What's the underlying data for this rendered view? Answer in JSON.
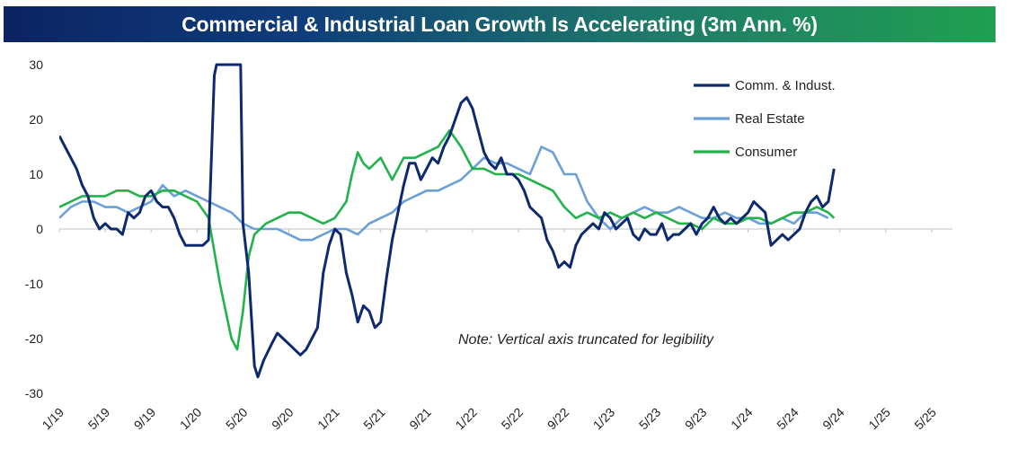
{
  "chart_data": {
    "type": "line",
    "title": "Commercial & Industrial Loan Growth Is Accelerating (3m Ann. %)",
    "note": "Note: Vertical axis truncated for legibility",
    "ylim": [
      -30,
      30
    ],
    "y_ticks": [
      "30",
      "20",
      "10",
      "0",
      "-10",
      "-20",
      "-30"
    ],
    "y_tick_values": [
      30,
      20,
      10,
      0,
      -10,
      -20,
      -30
    ],
    "x_tick_labels": [
      "1/19",
      "5/19",
      "9/19",
      "1/20",
      "5/20",
      "9/20",
      "1/21",
      "5/21",
      "9/21",
      "1/22",
      "5/22",
      "9/22",
      "1/23",
      "5/23",
      "9/23",
      "1/24",
      "5/24",
      "9/24",
      "1/25",
      "5/25"
    ],
    "x_tick_values": [
      0,
      4,
      8,
      12,
      16,
      20,
      24,
      28,
      32,
      36,
      40,
      44,
      48,
      52,
      56,
      60,
      64,
      68,
      72,
      76
    ],
    "xlim": [
      0,
      80
    ],
    "legend_position": "top-right",
    "series": [
      {
        "name": "Comm. & Indust.",
        "color": "#0e2a6e",
        "points": [
          [
            0,
            17
          ],
          [
            0.5,
            15
          ],
          [
            1,
            13
          ],
          [
            1.5,
            11
          ],
          [
            2,
            8
          ],
          [
            2.5,
            6
          ],
          [
            3,
            2
          ],
          [
            3.5,
            0
          ],
          [
            4,
            1
          ],
          [
            4.5,
            0
          ],
          [
            5,
            0
          ],
          [
            5.5,
            -1
          ],
          [
            6,
            3
          ],
          [
            6.5,
            2
          ],
          [
            7,
            3
          ],
          [
            7.5,
            6
          ],
          [
            8,
            7
          ],
          [
            8.5,
            5
          ],
          [
            9,
            4
          ],
          [
            9.5,
            4
          ],
          [
            10,
            2
          ],
          [
            10.5,
            -1
          ],
          [
            11,
            -3
          ],
          [
            11.5,
            -3
          ],
          [
            12,
            -3
          ],
          [
            12.5,
            -3
          ],
          [
            13,
            -2
          ],
          [
            13.5,
            28
          ],
          [
            13.7,
            30
          ],
          [
            14.5,
            30
          ],
          [
            15.8,
            30
          ],
          [
            16,
            1
          ],
          [
            16.5,
            -8
          ],
          [
            17,
            -25
          ],
          [
            17.3,
            -27
          ],
          [
            17.8,
            -24
          ],
          [
            18.5,
            -21
          ],
          [
            19,
            -19
          ],
          [
            19.5,
            -20
          ],
          [
            20,
            -21
          ],
          [
            20.5,
            -22
          ],
          [
            21,
            -23
          ],
          [
            21.5,
            -22
          ],
          [
            22,
            -20
          ],
          [
            22.5,
            -18
          ],
          [
            23,
            -8
          ],
          [
            23.5,
            -3
          ],
          [
            24,
            0
          ],
          [
            24.5,
            -1
          ],
          [
            25,
            -8
          ],
          [
            25.5,
            -12
          ],
          [
            26,
            -17
          ],
          [
            26.5,
            -14
          ],
          [
            27,
            -15
          ],
          [
            27.5,
            -18
          ],
          [
            28,
            -17
          ],
          [
            28.5,
            -9
          ],
          [
            29,
            -2
          ],
          [
            29.5,
            3
          ],
          [
            30,
            8
          ],
          [
            30.5,
            12
          ],
          [
            31,
            12
          ],
          [
            31.5,
            9
          ],
          [
            32,
            11
          ],
          [
            32.5,
            13
          ],
          [
            33,
            12
          ],
          [
            33.5,
            15
          ],
          [
            34,
            17
          ],
          [
            34.5,
            20
          ],
          [
            35,
            23
          ],
          [
            35.5,
            24
          ],
          [
            36,
            22
          ],
          [
            36.5,
            18
          ],
          [
            37,
            14
          ],
          [
            37.5,
            12
          ],
          [
            38,
            11
          ],
          [
            38.5,
            13
          ],
          [
            39,
            10
          ],
          [
            39.5,
            10
          ],
          [
            40,
            9
          ],
          [
            40.5,
            7
          ],
          [
            41,
            4
          ],
          [
            41.5,
            3
          ],
          [
            42,
            2
          ],
          [
            42.5,
            -2
          ],
          [
            43,
            -4
          ],
          [
            43.5,
            -7
          ],
          [
            44,
            -6
          ],
          [
            44.5,
            -7
          ],
          [
            45,
            -3
          ],
          [
            45.5,
            -1
          ],
          [
            46,
            0
          ],
          [
            46.5,
            1
          ],
          [
            47,
            0
          ],
          [
            47.5,
            3
          ],
          [
            48,
            2
          ],
          [
            48.5,
            0
          ],
          [
            49,
            1
          ],
          [
            49.5,
            2
          ],
          [
            50,
            -1
          ],
          [
            50.5,
            -2
          ],
          [
            51,
            0
          ],
          [
            51.5,
            -1
          ],
          [
            52,
            -1
          ],
          [
            52.5,
            1
          ],
          [
            53,
            -2
          ],
          [
            53.5,
            -1
          ],
          [
            54,
            -1
          ],
          [
            54.5,
            0
          ],
          [
            55,
            1
          ],
          [
            55.5,
            -1
          ],
          [
            56,
            1
          ],
          [
            56.5,
            2
          ],
          [
            57,
            4
          ],
          [
            57.5,
            2
          ],
          [
            58,
            1
          ],
          [
            58.5,
            2
          ],
          [
            59,
            1
          ],
          [
            59.5,
            2
          ],
          [
            60,
            3
          ],
          [
            60.5,
            5
          ],
          [
            61,
            4
          ],
          [
            61.5,
            3
          ],
          [
            62,
            -3
          ],
          [
            62.5,
            -2
          ],
          [
            63,
            -1
          ],
          [
            63.5,
            -2
          ],
          [
            64,
            -1
          ],
          [
            64.5,
            0
          ],
          [
            65,
            3
          ],
          [
            65.5,
            5
          ],
          [
            66,
            6
          ],
          [
            66.5,
            4
          ],
          [
            67,
            5
          ],
          [
            67.5,
            11
          ]
        ]
      },
      {
        "name": "Real Estate",
        "color": "#6a9fd8",
        "points": [
          [
            0,
            2
          ],
          [
            1,
            4
          ],
          [
            2,
            5
          ],
          [
            3,
            5
          ],
          [
            4,
            4
          ],
          [
            5,
            4
          ],
          [
            6,
            3
          ],
          [
            7,
            4
          ],
          [
            8,
            5
          ],
          [
            9,
            8
          ],
          [
            10,
            6
          ],
          [
            11,
            7
          ],
          [
            12,
            6
          ],
          [
            13,
            5
          ],
          [
            14,
            4
          ],
          [
            15,
            3
          ],
          [
            16,
            1
          ],
          [
            17,
            0
          ],
          [
            18,
            0
          ],
          [
            19,
            0
          ],
          [
            20,
            -1
          ],
          [
            21,
            -2
          ],
          [
            22,
            -2
          ],
          [
            23,
            -1
          ],
          [
            24,
            0
          ],
          [
            25,
            0
          ],
          [
            26,
            -1
          ],
          [
            27,
            1
          ],
          [
            28,
            2
          ],
          [
            29,
            3
          ],
          [
            30,
            5
          ],
          [
            31,
            6
          ],
          [
            32,
            7
          ],
          [
            33,
            7
          ],
          [
            34,
            8
          ],
          [
            35,
            9
          ],
          [
            36,
            11
          ],
          [
            37,
            13
          ],
          [
            38,
            12
          ],
          [
            39,
            12
          ],
          [
            40,
            11
          ],
          [
            41,
            10
          ],
          [
            42,
            15
          ],
          [
            43,
            14
          ],
          [
            44,
            10
          ],
          [
            45,
            10
          ],
          [
            46,
            5
          ],
          [
            47,
            2
          ],
          [
            48,
            0
          ],
          [
            49,
            2
          ],
          [
            50,
            3
          ],
          [
            51,
            4
          ],
          [
            52,
            3
          ],
          [
            53,
            3
          ],
          [
            54,
            4
          ],
          [
            55,
            3
          ],
          [
            56,
            2
          ],
          [
            57,
            2
          ],
          [
            58,
            3
          ],
          [
            59,
            2
          ],
          [
            60,
            2
          ],
          [
            61,
            1
          ],
          [
            62,
            1
          ],
          [
            63,
            2
          ],
          [
            64,
            1
          ],
          [
            65,
            3
          ],
          [
            66,
            3
          ],
          [
            67,
            2
          ]
        ]
      },
      {
        "name": "Consumer",
        "color": "#22b24c",
        "points": [
          [
            0,
            4
          ],
          [
            1,
            5
          ],
          [
            2,
            6
          ],
          [
            3,
            6
          ],
          [
            4,
            6
          ],
          [
            5,
            7
          ],
          [
            6,
            7
          ],
          [
            7,
            6
          ],
          [
            8,
            6
          ],
          [
            9,
            7
          ],
          [
            10,
            7
          ],
          [
            11,
            6
          ],
          [
            12,
            5
          ],
          [
            13,
            2
          ],
          [
            14,
            -10
          ],
          [
            15,
            -20
          ],
          [
            15.5,
            -22
          ],
          [
            16,
            -15
          ],
          [
            16.5,
            -5
          ],
          [
            17,
            -1
          ],
          [
            18,
            1
          ],
          [
            19,
            2
          ],
          [
            20,
            3
          ],
          [
            21,
            3
          ],
          [
            22,
            2
          ],
          [
            23,
            1
          ],
          [
            24,
            2
          ],
          [
            25,
            5
          ],
          [
            25.5,
            10
          ],
          [
            26,
            14
          ],
          [
            26.5,
            12
          ],
          [
            27,
            11
          ],
          [
            27.5,
            12
          ],
          [
            28,
            13
          ],
          [
            29,
            9
          ],
          [
            30,
            13
          ],
          [
            31,
            13
          ],
          [
            32,
            14
          ],
          [
            33,
            15
          ],
          [
            34,
            18
          ],
          [
            35,
            15
          ],
          [
            36,
            11
          ],
          [
            37,
            11
          ],
          [
            38,
            10
          ],
          [
            39,
            10
          ],
          [
            40,
            10
          ],
          [
            41,
            9
          ],
          [
            42,
            8
          ],
          [
            43,
            7
          ],
          [
            44,
            4
          ],
          [
            45,
            2
          ],
          [
            46,
            3
          ],
          [
            47,
            2
          ],
          [
            48,
            3
          ],
          [
            49,
            2
          ],
          [
            50,
            3
          ],
          [
            51,
            2
          ],
          [
            52,
            3
          ],
          [
            53,
            2
          ],
          [
            54,
            1
          ],
          [
            55,
            1
          ],
          [
            56,
            0
          ],
          [
            57,
            2
          ],
          [
            58,
            1
          ],
          [
            59,
            1
          ],
          [
            60,
            2
          ],
          [
            61,
            2
          ],
          [
            62,
            1
          ],
          [
            63,
            2
          ],
          [
            64,
            3
          ],
          [
            65,
            3
          ],
          [
            66,
            4
          ],
          [
            67,
            3
          ],
          [
            67.5,
            2
          ]
        ]
      }
    ]
  }
}
